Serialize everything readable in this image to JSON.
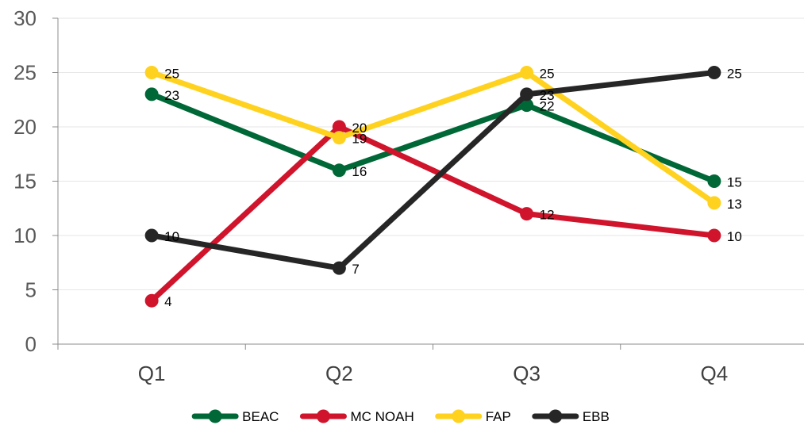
{
  "chart_data": {
    "type": "line",
    "title": "",
    "xlabel": "",
    "ylabel": "",
    "categories": [
      "Q1",
      "Q2",
      "Q3",
      "Q4"
    ],
    "ylim": [
      0,
      30
    ],
    "yticks": [
      0,
      5,
      10,
      15,
      20,
      25,
      30
    ],
    "grid": true,
    "legend_position": "bottom",
    "data_labels": true,
    "series": [
      {
        "name": "BEAC",
        "color": "#006837",
        "values": [
          23,
          16,
          22,
          15
        ]
      },
      {
        "name": "MC NOAH",
        "color": "#D0142C",
        "values": [
          4,
          20,
          12,
          10
        ]
      },
      {
        "name": "FAP",
        "color": "#FFD21F",
        "values": [
          25,
          19,
          25,
          13
        ]
      },
      {
        "name": "EBB",
        "color": "#262626",
        "values": [
          10,
          7,
          23,
          25
        ]
      }
    ]
  }
}
